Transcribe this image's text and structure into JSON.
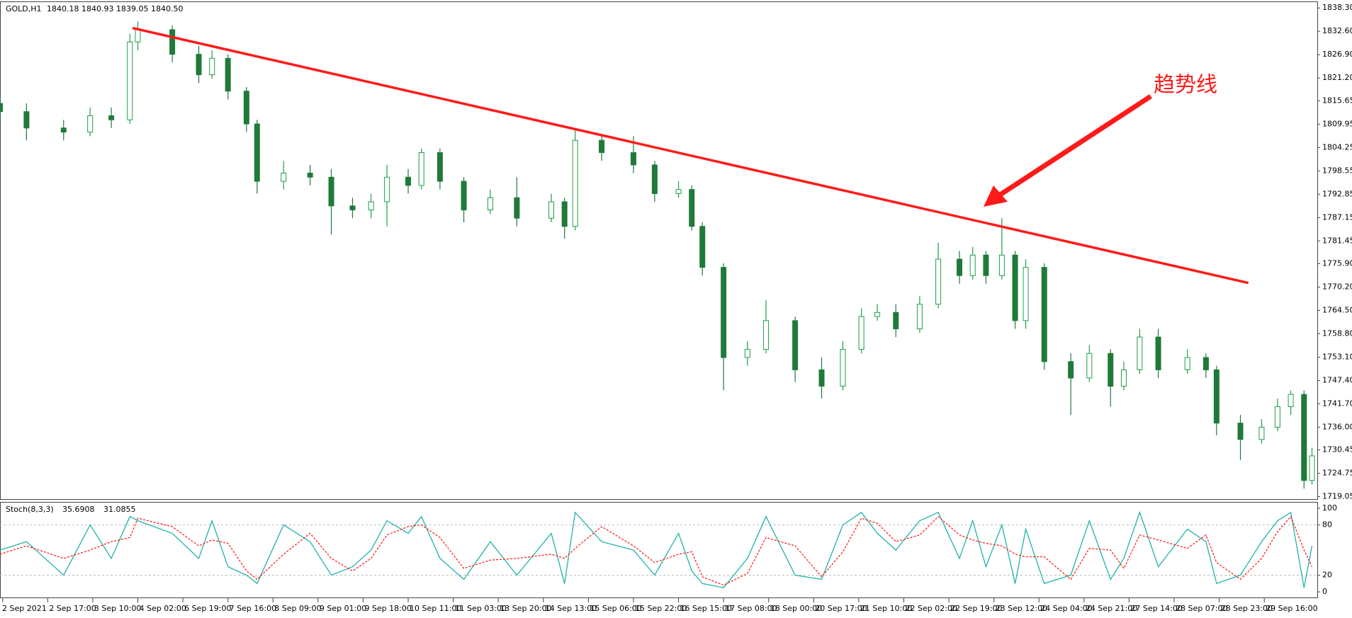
{
  "header": {
    "symbol": "GOLD,H1",
    "quote": "1840.18 1840.93 1839.05 1840.50"
  },
  "chart_data": [
    {
      "type": "candlestick",
      "x": [
        0,
        10,
        24,
        34,
        42,
        49,
        52,
        65,
        75,
        80,
        86,
        93,
        97,
        107,
        117,
        125,
        133,
        140,
        146,
        154,
        159,
        166,
        175,
        185,
        195,
        208,
        213,
        217,
        227,
        239,
        247,
        256,
        261,
        265,
        273,
        282,
        289,
        300,
        310,
        318,
        325,
        331,
        338,
        347,
        354,
        362,
        367,
        372,
        378,
        383,
        387,
        394,
        404,
        411,
        419,
        424,
        430,
        437,
        448,
        455,
        459,
        468,
        476,
        482,
        487,
        492,
        495
      ],
      "open": [
        1815,
        1813,
        1809,
        1808,
        1812,
        1811,
        1830,
        1833,
        1827,
        1822,
        1826,
        1818,
        1810,
        1796,
        1798,
        1797,
        1790,
        1789,
        1791,
        1797,
        1795,
        1803,
        1796,
        1789,
        1792,
        1787,
        1791,
        1785,
        1806,
        1803,
        1800,
        1793,
        1794,
        1785,
        1775,
        1753,
        1755,
        1762,
        1750,
        1746,
        1755,
        1763,
        1764,
        1760,
        1766,
        1777,
        1773,
        1778,
        1773,
        1778,
        1762,
        1775,
        1752,
        1748,
        1754,
        1746,
        1750,
        1758,
        1750,
        1753,
        1750,
        1737,
        1733,
        1736,
        1741,
        1744,
        1723
      ],
      "high": [
        1817,
        1815,
        1811,
        1814,
        1814,
        1832,
        1835,
        1834,
        1829,
        1828,
        1827,
        1819,
        1811,
        1801,
        1800,
        1799,
        1792,
        1793,
        1800,
        1799,
        1804,
        1804,
        1797,
        1794,
        1797,
        1793,
        1792,
        1809,
        1807,
        1807,
        1801,
        1796,
        1795,
        1786,
        1776,
        1757,
        1767,
        1763,
        1753,
        1757,
        1765,
        1766,
        1766,
        1768,
        1781,
        1779,
        1780,
        1779,
        1787,
        1779,
        1777,
        1776,
        1754,
        1756,
        1755,
        1752,
        1760,
        1760,
        1755,
        1754,
        1751,
        1739,
        1738,
        1743,
        1745,
        1745,
        1731
      ],
      "low": [
        1811,
        1806,
        1806,
        1807,
        1809,
        1810,
        1828,
        1825,
        1820,
        1821,
        1816,
        1808,
        1793,
        1794,
        1795,
        1783,
        1787,
        1787,
        1785,
        1793,
        1794,
        1794,
        1786,
        1788,
        1785,
        1786,
        1782,
        1784,
        1801,
        1798,
        1791,
        1792,
        1784,
        1773,
        1745,
        1751,
        1754,
        1747,
        1743,
        1745,
        1754,
        1762,
        1758,
        1759,
        1765,
        1771,
        1772,
        1771,
        1772,
        1760,
        1760,
        1750,
        1739,
        1747,
        1741,
        1745,
        1749,
        1748,
        1749,
        1748,
        1734,
        1728,
        1732,
        1735,
        1739,
        1721,
        1722
      ],
      "close": [
        1813,
        1809,
        1808,
        1812,
        1811,
        1830,
        1833,
        1827,
        1822,
        1826,
        1818,
        1810,
        1796,
        1798,
        1797,
        1790,
        1789,
        1791,
        1797,
        1795,
        1803,
        1796,
        1789,
        1792,
        1787,
        1791,
        1785,
        1806,
        1803,
        1800,
        1793,
        1794,
        1785,
        1775,
        1753,
        1755,
        1762,
        1750,
        1746,
        1755,
        1763,
        1764,
        1760,
        1766,
        1777,
        1773,
        1778,
        1773,
        1778,
        1762,
        1775,
        1752,
        1748,
        1754,
        1746,
        1750,
        1758,
        1750,
        1753,
        1750,
        1737,
        1733,
        1736,
        1741,
        1744,
        1723,
        1729
      ],
      "up_color": "#1f9e4a",
      "down_color": "#1f7a3a",
      "xlim": [
        0,
        497
      ],
      "xticks": [
        {
          "value": 1,
          "label": "2 Sep 2021"
        },
        {
          "value": 18,
          "label": "2 Sep 17:00"
        },
        {
          "value": 35,
          "label": "3 Sep 10:00"
        },
        {
          "value": 52,
          "label": "4 Sep 02:00"
        },
        {
          "value": 69,
          "label": "6 Sep 19:00"
        },
        {
          "value": 86,
          "label": "7 Sep 16:00"
        },
        {
          "value": 103,
          "label": "8 Sep 09:00"
        },
        {
          "value": 120,
          "label": "9 Sep 01:00"
        },
        {
          "value": 137,
          "label": "9 Sep 18:00"
        },
        {
          "value": 154,
          "label": "10 Sep 11:00"
        },
        {
          "value": 171,
          "label": "11 Sep 03:00"
        },
        {
          "value": 188,
          "label": "13 Sep 20:00"
        },
        {
          "value": 205,
          "label": "14 Sep 13:00"
        },
        {
          "value": 222,
          "label": "15 Sep 06:00"
        },
        {
          "value": 239,
          "label": "15 Sep 22:00"
        },
        {
          "value": 256,
          "label": "16 Sep 15:00"
        },
        {
          "value": 273,
          "label": "17 Sep 08:00"
        },
        {
          "value": 290,
          "label": "18 Sep 00:00"
        },
        {
          "value": 307,
          "label": "20 Sep 17:00"
        },
        {
          "value": 324,
          "label": "21 Sep 10:00"
        },
        {
          "value": 341,
          "label": "22 Sep 02:00"
        },
        {
          "value": 358,
          "label": "22 Sep 19:00"
        },
        {
          "value": 375,
          "label": "23 Sep 12:00"
        },
        {
          "value": 392,
          "label": "24 Sep 04:00"
        },
        {
          "value": 409,
          "label": "24 Sep 21:00"
        },
        {
          "value": 426,
          "label": "27 Sep 14:00"
        },
        {
          "value": 443,
          "label": "28 Sep 07:00"
        },
        {
          "value": 460,
          "label": "28 Sep 23:00"
        },
        {
          "value": 477,
          "label": "29 Sep 16:00"
        }
      ],
      "ylim": [
        1718.63,
        1839.55
      ],
      "yticks": [
        {
          "value": 1838.3,
          "label": "1838.30"
        },
        {
          "value": 1832.6,
          "label": "1832.60"
        },
        {
          "value": 1826.9,
          "label": "1826.90"
        },
        {
          "value": 1821.2,
          "label": "1821.20"
        },
        {
          "value": 1815.65,
          "label": "1815.65"
        },
        {
          "value": 1809.95,
          "label": "1809.95"
        },
        {
          "value": 1804.25,
          "label": "1804.25"
        },
        {
          "value": 1798.55,
          "label": "1798.55"
        },
        {
          "value": 1792.85,
          "label": "1792.85"
        },
        {
          "value": 1787.15,
          "label": "1787.15"
        },
        {
          "value": 1781.45,
          "label": "1781.45"
        },
        {
          "value": 1775.9,
          "label": "1775.90"
        },
        {
          "value": 1770.2,
          "label": "1770.20"
        },
        {
          "value": 1764.5,
          "label": "1764.50"
        },
        {
          "value": 1758.8,
          "label": "1758.80"
        },
        {
          "value": 1753.1,
          "label": "1753.10"
        },
        {
          "value": 1747.4,
          "label": "1747.40"
        },
        {
          "value": 1741.7,
          "label": "1741.70"
        },
        {
          "value": 1736,
          "label": "1736.00"
        },
        {
          "value": 1730.45,
          "label": "1730.45"
        },
        {
          "value": 1724.75,
          "label": "1724.75"
        },
        {
          "value": 1719.05,
          "label": "1719.05"
        }
      ],
      "trendline": {
        "color": "#ff1a1a",
        "start": {
          "x": 50,
          "y": 1833.4
        },
        "end": {
          "x": 471,
          "y": 1771.2
        }
      },
      "annotation": {
        "text": "趋势线",
        "color": "#ff1a1a"
      }
    },
    {
      "type": "line",
      "title": "Stoch(8,3,3)",
      "stats": [
        35.6908,
        31.0855
      ],
      "series": [
        {
          "color": "#20b2aa",
          "dash": false,
          "values": [
            50,
            60,
            20,
            80,
            40,
            90,
            85,
            70,
            40,
            85,
            30,
            20,
            10,
            80,
            60,
            20,
            30,
            50,
            85,
            70,
            90,
            40,
            15,
            60,
            20,
            70,
            10,
            95,
            60,
            50,
            20,
            70,
            25,
            10,
            5,
            40,
            90,
            20,
            15,
            80,
            95,
            70,
            50,
            85,
            95,
            40,
            85,
            30,
            80,
            10,
            75,
            10,
            20,
            85,
            15,
            40,
            95,
            30,
            75,
            60,
            10,
            20,
            60,
            85,
            95,
            5,
            55
          ]
        },
        {
          "color": "#ff2020",
          "dash": true,
          "values": [
            45,
            55,
            40,
            50,
            60,
            65,
            88,
            78,
            55,
            62,
            58,
            25,
            15,
            45,
            70,
            40,
            25,
            40,
            68,
            78,
            80,
            65,
            28,
            38,
            40,
            45,
            40,
            52,
            78,
            55,
            35,
            45,
            48,
            18,
            8,
            22,
            65,
            55,
            18,
            48,
            88,
            82,
            60,
            68,
            90,
            68,
            62,
            58,
            55,
            45,
            42,
            42,
            15,
            52,
            50,
            28,
            68,
            62,
            52,
            68,
            35,
            15,
            40,
            72,
            90,
            50,
            30
          ]
        }
      ],
      "ylim": [
        -5,
        105
      ],
      "yticks": [
        100,
        80,
        20,
        0
      ],
      "levels": [
        80,
        20
      ]
    }
  ]
}
